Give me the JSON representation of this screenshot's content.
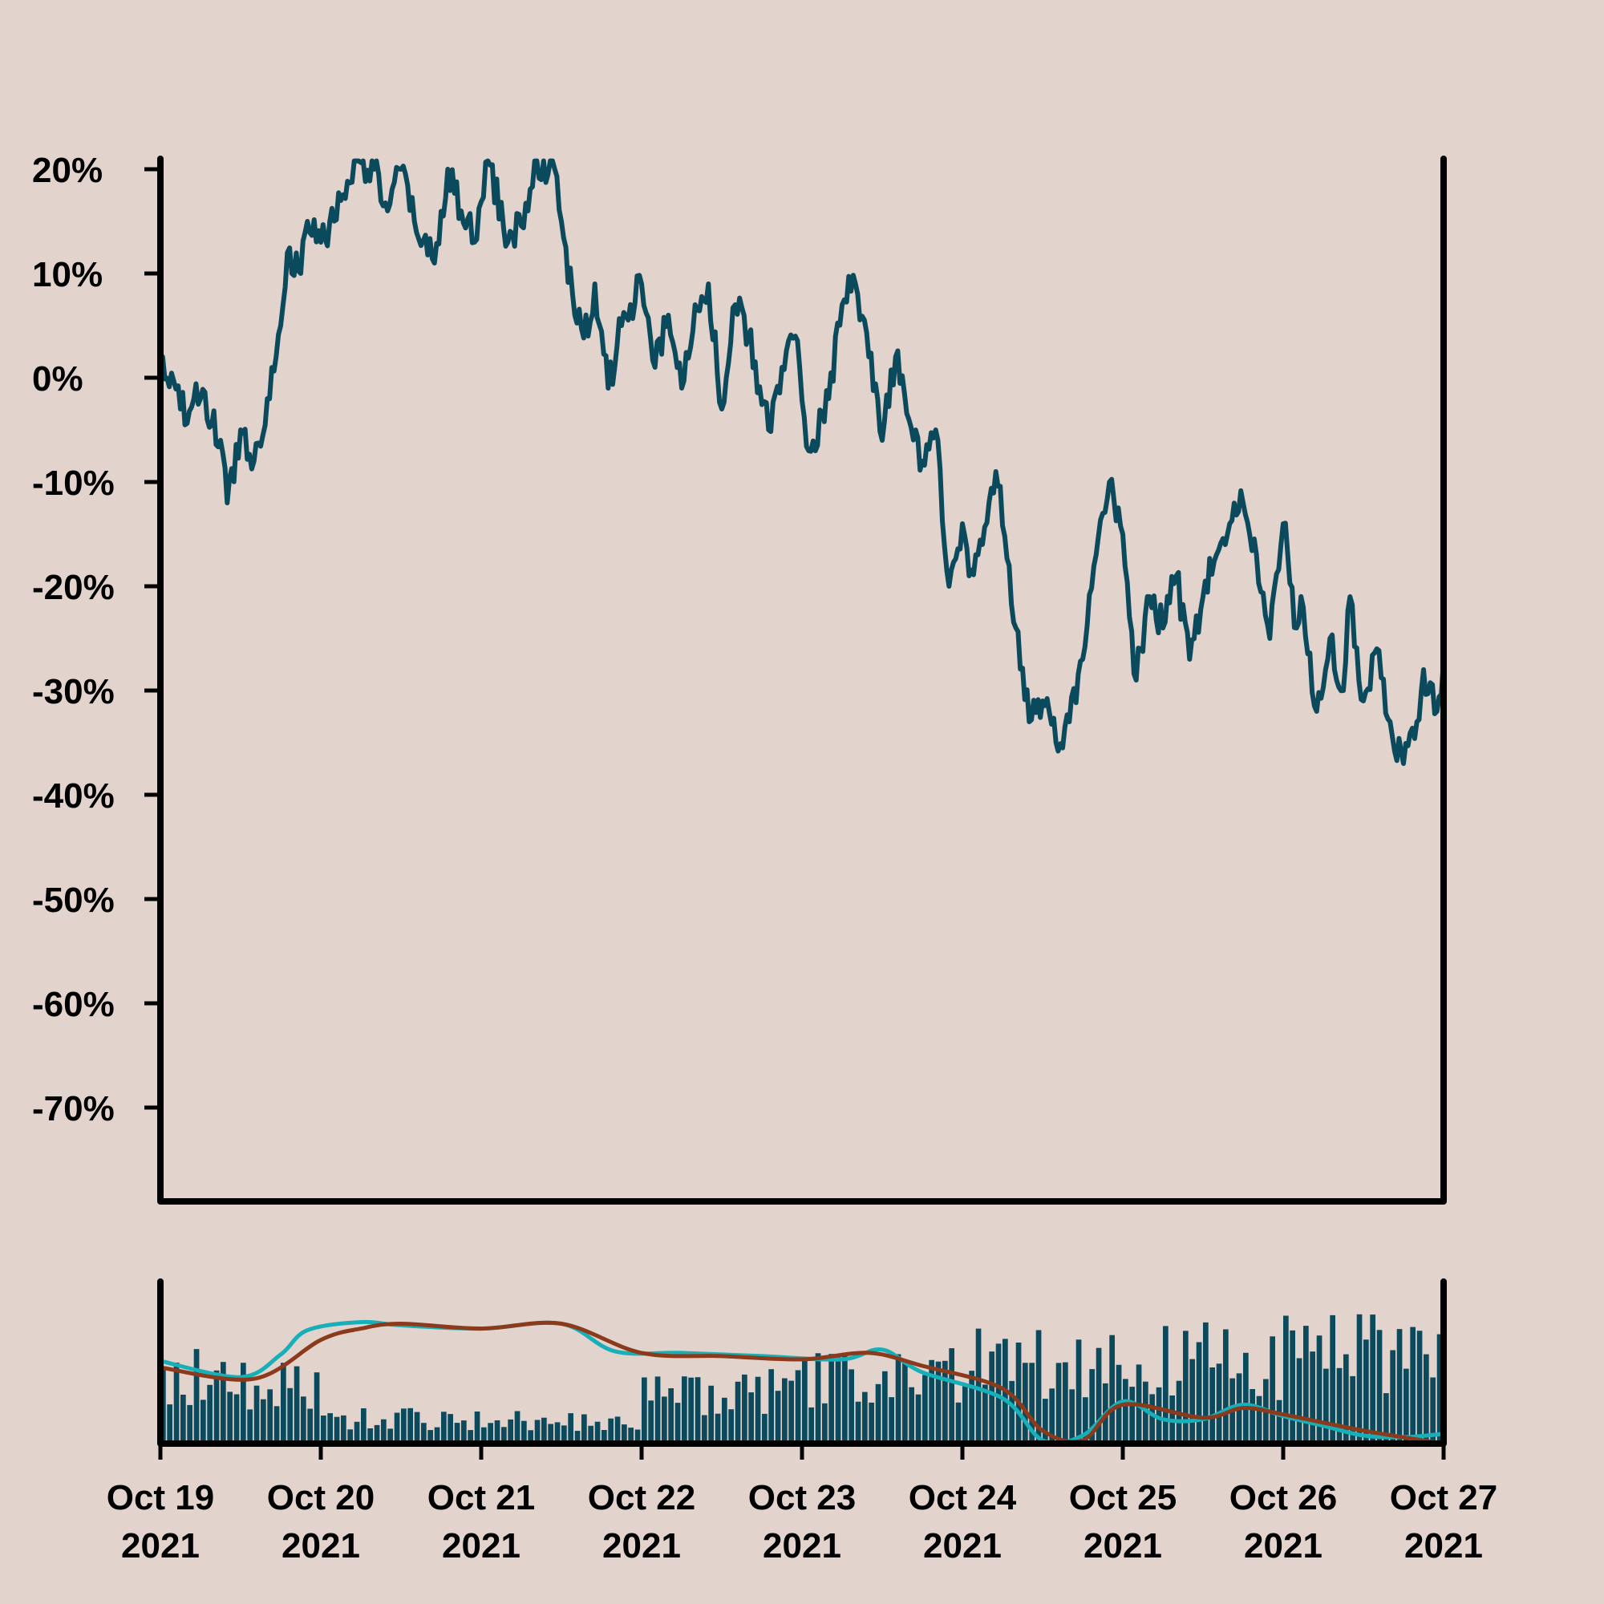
{
  "colors": {
    "background": "#e3d3cd",
    "price_line": "#0b4a5c",
    "volume_bars": "#0b4a5c",
    "fast_ma": "#17b0b8",
    "slow_ma": "#8b3a1c",
    "axis": "#000000"
  },
  "chart_data": [
    {
      "type": "line",
      "title": "",
      "xlabel": "",
      "ylabel": "",
      "ylim": [
        -0.79,
        0.21
      ],
      "yticks": [
        0.2,
        0.1,
        0.0,
        -0.1,
        -0.2,
        -0.3,
        -0.4,
        -0.5,
        -0.6,
        -0.7
      ],
      "ytick_labels": [
        "20%",
        "10%",
        "0%",
        "-10%",
        "-20%",
        "-30%",
        "-40%",
        "-50%",
        "-60%",
        "-70%"
      ],
      "grid": false,
      "x_range": [
        "2021-10-19",
        "2021-10-27"
      ],
      "series": [
        {
          "anchors": [
            [
              "2021-10-19 00:00",
              0.02
            ],
            [
              "2021-10-19 03:00",
              -0.03
            ],
            [
              "2021-10-19 06:00",
              -0.02
            ],
            [
              "2021-10-19 09:00",
              -0.06
            ],
            [
              "2021-10-19 10:00",
              -0.12
            ],
            [
              "2021-10-19 12:00",
              -0.05
            ],
            [
              "2021-10-19 14:00",
              -0.08
            ],
            [
              "2021-10-19 16:00",
              -0.02
            ],
            [
              "2021-10-19 18:00",
              0.05
            ],
            [
              "2021-10-19 19:00",
              0.12
            ],
            [
              "2021-10-19 21:00",
              0.1
            ],
            [
              "2021-10-19 22:00",
              0.15
            ],
            [
              "2021-10-20 00:00",
              0.13
            ],
            [
              "2021-10-20 03:00",
              0.17
            ],
            [
              "2021-10-20 05:00",
              0.21
            ],
            [
              "2021-10-20 08:00",
              0.2
            ],
            [
              "2021-10-20 10:00",
              0.16
            ],
            [
              "2021-10-20 12:00",
              0.2
            ],
            [
              "2021-10-20 14:00",
              0.15
            ],
            [
              "2021-10-20 17:00",
              0.11
            ],
            [
              "2021-10-20 19:00",
              0.2
            ],
            [
              "2021-10-20 21:00",
              0.16
            ],
            [
              "2021-10-20 23:00",
              0.13
            ],
            [
              "2021-10-21 01:00",
              0.21
            ],
            [
              "2021-10-21 04:00",
              0.13
            ],
            [
              "2021-10-21 07:00",
              0.16
            ],
            [
              "2021-10-21 08:00",
              0.21
            ],
            [
              "2021-10-21 11:00",
              0.2
            ],
            [
              "2021-10-21 12:00",
              0.15
            ],
            [
              "2021-10-21 14:00",
              0.06
            ],
            [
              "2021-10-21 16:00",
              0.04
            ],
            [
              "2021-10-21 17:00",
              0.09
            ],
            [
              "2021-10-21 19:00",
              -0.01
            ],
            [
              "2021-10-21 21:00",
              0.05
            ],
            [
              "2021-10-22 00:00",
              0.09
            ],
            [
              "2021-10-22 02:00",
              0.01
            ],
            [
              "2021-10-22 04:00",
              0.06
            ],
            [
              "2021-10-22 06:00",
              -0.01
            ],
            [
              "2021-10-22 08:00",
              0.07
            ],
            [
              "2021-10-22 10:00",
              0.09
            ],
            [
              "2021-10-22 12:00",
              -0.03
            ],
            [
              "2021-10-22 14:00",
              0.07
            ],
            [
              "2021-10-22 16:00",
              0.04
            ],
            [
              "2021-10-22 19:00",
              -0.05
            ],
            [
              "2021-10-22 21:00",
              0.01
            ],
            [
              "2021-10-22 23:00",
              0.04
            ],
            [
              "2021-10-23 01:00",
              -0.07
            ],
            [
              "2021-10-23 04:00",
              -0.02
            ],
            [
              "2021-10-23 06:00",
              0.07
            ],
            [
              "2021-10-23 08:00",
              0.09
            ],
            [
              "2021-10-23 10:00",
              0.02
            ],
            [
              "2021-10-23 12:00",
              -0.06
            ],
            [
              "2021-10-23 14:00",
              0.02
            ],
            [
              "2021-10-23 16:00",
              -0.04
            ],
            [
              "2021-10-23 18:00",
              -0.08
            ],
            [
              "2021-10-23 20:00",
              -0.05
            ],
            [
              "2021-10-23 22:00",
              -0.2
            ],
            [
              "2021-10-24 00:00",
              -0.14
            ],
            [
              "2021-10-24 01:00",
              -0.19
            ],
            [
              "2021-10-24 03:00",
              -0.16
            ],
            [
              "2021-10-24 05:00",
              -0.09
            ],
            [
              "2021-10-24 07:00",
              -0.18
            ],
            [
              "2021-10-24 08:00",
              -0.24
            ],
            [
              "2021-10-24 10:00",
              -0.33
            ],
            [
              "2021-10-24 12:00",
              -0.31
            ],
            [
              "2021-10-24 14:00",
              -0.35
            ],
            [
              "2021-10-24 16:00",
              -0.33
            ],
            [
              "2021-10-24 18:00",
              -0.27
            ],
            [
              "2021-10-24 20:00",
              -0.17
            ],
            [
              "2021-10-24 22:00",
              -0.1
            ],
            [
              "2021-10-25 00:00",
              -0.15
            ],
            [
              "2021-10-25 02:00",
              -0.29
            ],
            [
              "2021-10-25 04:00",
              -0.21
            ],
            [
              "2021-10-25 06:00",
              -0.24
            ],
            [
              "2021-10-25 08:00",
              -0.19
            ],
            [
              "2021-10-25 10:00",
              -0.27
            ],
            [
              "2021-10-25 12:00",
              -0.21
            ],
            [
              "2021-10-25 14:00",
              -0.17
            ],
            [
              "2021-10-25 16:00",
              -0.14
            ],
            [
              "2021-10-25 18:00",
              -0.12
            ],
            [
              "2021-10-25 20:00",
              -0.17
            ],
            [
              "2021-10-25 22:00",
              -0.25
            ],
            [
              "2021-10-26 00:00",
              -0.14
            ],
            [
              "2021-10-26 02:00",
              -0.24
            ],
            [
              "2021-10-26 03:00",
              -0.22
            ],
            [
              "2021-10-26 05:00",
              -0.32
            ],
            [
              "2021-10-26 07:00",
              -0.25
            ],
            [
              "2021-10-26 09:00",
              -0.3
            ],
            [
              "2021-10-26 10:00",
              -0.21
            ],
            [
              "2021-10-26 12:00",
              -0.31
            ],
            [
              "2021-10-26 14:00",
              -0.26
            ],
            [
              "2021-10-26 16:00",
              -0.33
            ],
            [
              "2021-10-26 18:00",
              -0.37
            ],
            [
              "2021-10-26 20:00",
              -0.33
            ],
            [
              "2021-10-26 21:00",
              -0.28
            ],
            [
              "2021-10-26 23:00",
              -0.32
            ],
            [
              "2021-10-27 00:00",
              -0.27
            ]
          ]
        }
      ]
    },
    {
      "type": "bar",
      "title": "",
      "xlabel": "",
      "ylabel": "",
      "grid": false,
      "x_range": [
        "2021-10-19",
        "2021-10-27"
      ],
      "xtick_labels": [
        [
          "Oct 19",
          "2021"
        ],
        [
          "Oct 20",
          "2021"
        ],
        [
          "Oct 21",
          "2021"
        ],
        [
          "Oct 22",
          "2021"
        ],
        [
          "Oct 23",
          "2021"
        ],
        [
          "Oct 24",
          "2021"
        ],
        [
          "Oct 25",
          "2021"
        ],
        [
          "Oct 26",
          "2021"
        ],
        [
          "Oct 27",
          "2021"
        ]
      ],
      "ylim": [
        0,
        1
      ],
      "volume_level_by_day": [
        0.45,
        0.18,
        0.14,
        0.32,
        0.42,
        0.62,
        0.55,
        0.6
      ],
      "moving_averages": [
        {
          "key": "fast",
          "points": [
            [
              "2021-10-19 00:00",
              0.51
            ],
            [
              "2021-10-19 12:00",
              0.41
            ],
            [
              "2021-10-19 18:00",
              0.55
            ],
            [
              "2021-10-19 22:00",
              0.7
            ],
            [
              "2021-10-20 06:00",
              0.75
            ],
            [
              "2021-10-20 12:00",
              0.73
            ],
            [
              "2021-10-21 00:00",
              0.71
            ],
            [
              "2021-10-21 12:00",
              0.74
            ],
            [
              "2021-10-21 20:00",
              0.57
            ],
            [
              "2021-10-22 06:00",
              0.56
            ],
            [
              "2021-10-22 18:00",
              0.54
            ],
            [
              "2021-10-23 06:00",
              0.52
            ],
            [
              "2021-10-23 12:00",
              0.58
            ],
            [
              "2021-10-23 18:00",
              0.44
            ],
            [
              "2021-10-24 06:00",
              0.28
            ],
            [
              "2021-10-24 12:00",
              0.02
            ],
            [
              "2021-10-24 18:00",
              0.05
            ],
            [
              "2021-10-25 00:00",
              0.26
            ],
            [
              "2021-10-25 06:00",
              0.15
            ],
            [
              "2021-10-25 12:00",
              0.15
            ],
            [
              "2021-10-25 18:00",
              0.24
            ],
            [
              "2021-10-26 00:00",
              0.17
            ],
            [
              "2021-10-26 06:00",
              0.11
            ],
            [
              "2021-10-26 12:00",
              0.05
            ],
            [
              "2021-10-26 18:00",
              0.04
            ],
            [
              "2021-10-27 00:00",
              0.06
            ]
          ]
        },
        {
          "key": "slow",
          "points": [
            [
              "2021-10-19 00:00",
              0.47
            ],
            [
              "2021-10-19 14:00",
              0.4
            ],
            [
              "2021-10-20 00:00",
              0.64
            ],
            [
              "2021-10-20 06:00",
              0.71
            ],
            [
              "2021-10-20 12:00",
              0.74
            ],
            [
              "2021-10-21 00:00",
              0.71
            ],
            [
              "2021-10-21 12:00",
              0.74
            ],
            [
              "2021-10-22 00:00",
              0.56
            ],
            [
              "2021-10-22 12:00",
              0.54
            ],
            [
              "2021-10-23 00:00",
              0.52
            ],
            [
              "2021-10-23 10:00",
              0.56
            ],
            [
              "2021-10-23 18:00",
              0.48
            ],
            [
              "2021-10-24 06:00",
              0.34
            ],
            [
              "2021-10-24 12:00",
              0.08
            ],
            [
              "2021-10-24 18:00",
              0.02
            ],
            [
              "2021-10-25 00:00",
              0.24
            ],
            [
              "2021-10-25 12:00",
              0.16
            ],
            [
              "2021-10-25 18:00",
              0.22
            ],
            [
              "2021-10-26 00:00",
              0.18
            ],
            [
              "2021-10-26 12:00",
              0.08
            ],
            [
              "2021-10-27 00:00",
              0.0
            ]
          ]
        }
      ]
    }
  ]
}
